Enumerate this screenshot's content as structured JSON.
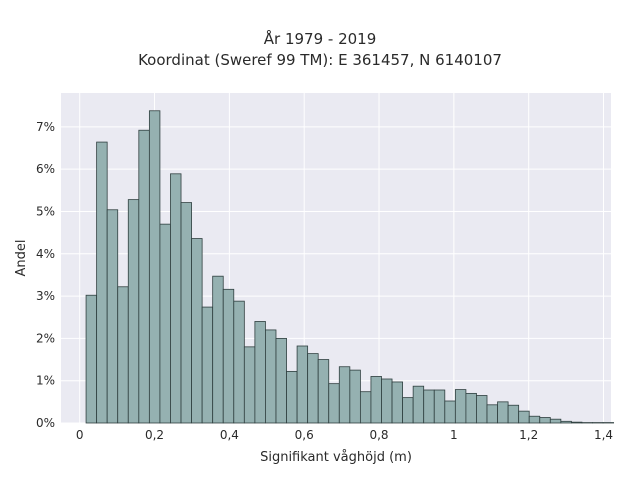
{
  "chart_data": {
    "type": "bar",
    "title": "År 1979 - 2019",
    "subtitle": "Koordinat (Sweref 99 TM): E 361457, N 6140107",
    "xlabel": "Signifikant våghöjd (m)",
    "ylabel": "Andel",
    "xlim": [
      -0.05,
      1.42
    ],
    "ylim": [
      0,
      7.8
    ],
    "x_ticks": [
      0,
      0.2,
      0.4,
      0.6,
      0.8,
      1,
      1.2,
      1.4
    ],
    "x_tick_labels": [
      "0",
      "0,2",
      "0,4",
      "0,6",
      "0,8",
      "1",
      "1,2",
      "1,4"
    ],
    "y_ticks": [
      0,
      1,
      2,
      3,
      4,
      5,
      6,
      7
    ],
    "y_tick_labels": [
      "0%",
      "1%",
      "2%",
      "3%",
      "4%",
      "5%",
      "6%",
      "7%"
    ],
    "y_unit": "percent",
    "bin_width": 0.0282,
    "bin_start": 0.017,
    "values": [
      3.02,
      6.64,
      5.04,
      3.22,
      5.28,
      6.92,
      7.38,
      4.7,
      5.89,
      5.21,
      4.36,
      2.74,
      3.47,
      3.16,
      2.88,
      1.8,
      2.4,
      2.2,
      2.0,
      1.22,
      1.82,
      1.64,
      1.5,
      0.93,
      1.33,
      1.25,
      0.74,
      1.1,
      1.04,
      0.97,
      0.6,
      0.87,
      0.78,
      0.78,
      0.52,
      0.79,
      0.7,
      0.65,
      0.43,
      0.5,
      0.42,
      0.28,
      0.16,
      0.13,
      0.09,
      0.04,
      0.02,
      0.01,
      0.01,
      0.01
    ],
    "grid": true,
    "legend": "none",
    "colors": {
      "plot_background": "#eaeaf2",
      "grid": "#ffffff",
      "bar_fill": "#95b1b1",
      "bar_stroke": "#2f3f3f"
    }
  }
}
